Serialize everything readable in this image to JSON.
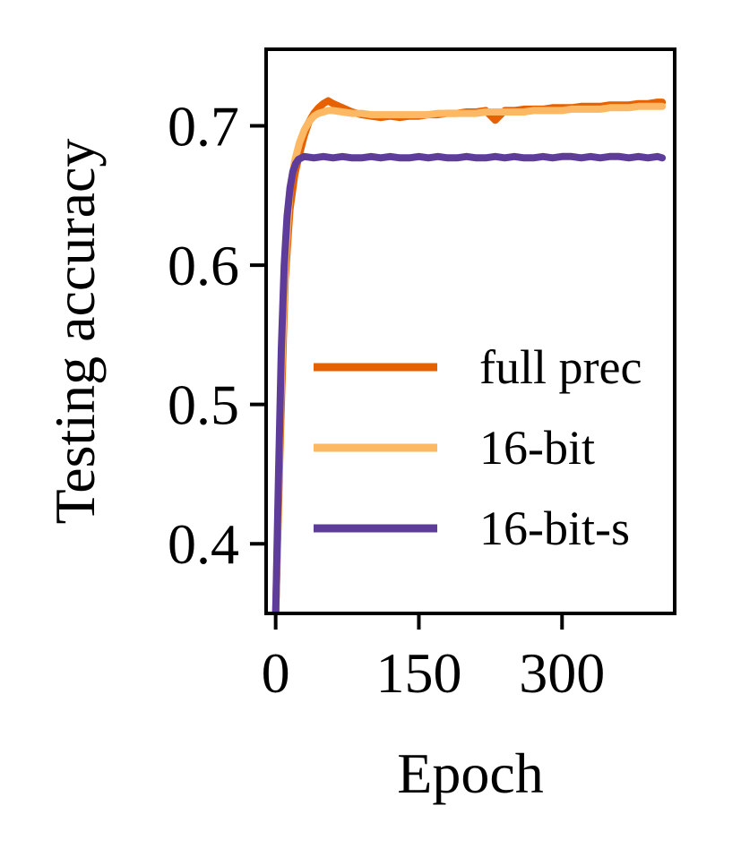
{
  "chart_data": {
    "type": "line",
    "xlabel": "Epoch",
    "ylabel": "Testing accuracy",
    "xlim": [
      -10,
      418
    ],
    "ylim": [
      0.35,
      0.755
    ],
    "xticks": [
      0,
      150,
      300
    ],
    "xtick_labels": [
      "0",
      "150",
      "300"
    ],
    "yticks": [
      0.4,
      0.5,
      0.6,
      0.7
    ],
    "ytick_labels": [
      "0.4",
      "0.5",
      "0.6",
      "0.7"
    ],
    "grid": false,
    "legend_position": "lower-right",
    "series": [
      {
        "name": "full prec",
        "color": "#e66101",
        "x": [
          0,
          5,
          10,
          15,
          20,
          25,
          30,
          35,
          40,
          45,
          50,
          55,
          60,
          70,
          80,
          90,
          100,
          110,
          120,
          130,
          140,
          150,
          160,
          170,
          180,
          190,
          200,
          210,
          220,
          230,
          240,
          250,
          260,
          270,
          280,
          290,
          300,
          310,
          320,
          330,
          340,
          350,
          360,
          370,
          380,
          390,
          400,
          405
        ],
        "y": [
          0.35,
          0.48,
          0.59,
          0.64,
          0.665,
          0.68,
          0.693,
          0.703,
          0.709,
          0.713,
          0.716,
          0.718,
          0.716,
          0.713,
          0.71,
          0.708,
          0.707,
          0.706,
          0.707,
          0.706,
          0.707,
          0.707,
          0.708,
          0.708,
          0.709,
          0.709,
          0.71,
          0.71,
          0.711,
          0.704,
          0.711,
          0.711,
          0.712,
          0.712,
          0.712,
          0.713,
          0.713,
          0.713,
          0.714,
          0.714,
          0.714,
          0.715,
          0.715,
          0.715,
          0.716,
          0.716,
          0.717,
          0.717
        ]
      },
      {
        "name": "16-bit",
        "color": "#fdb863",
        "x": [
          0,
          5,
          10,
          15,
          20,
          25,
          30,
          35,
          40,
          45,
          50,
          55,
          60,
          70,
          80,
          90,
          100,
          110,
          120,
          130,
          140,
          150,
          160,
          170,
          180,
          190,
          200,
          210,
          220,
          230,
          240,
          250,
          260,
          270,
          280,
          290,
          300,
          310,
          320,
          330,
          340,
          350,
          360,
          370,
          380,
          390,
          400,
          405
        ],
        "y": [
          0.35,
          0.5,
          0.6,
          0.655,
          0.675,
          0.688,
          0.697,
          0.703,
          0.707,
          0.709,
          0.71,
          0.711,
          0.711,
          0.71,
          0.709,
          0.709,
          0.708,
          0.708,
          0.708,
          0.708,
          0.708,
          0.708,
          0.708,
          0.709,
          0.709,
          0.709,
          0.709,
          0.709,
          0.71,
          0.71,
          0.71,
          0.71,
          0.71,
          0.711,
          0.711,
          0.711,
          0.711,
          0.712,
          0.712,
          0.712,
          0.712,
          0.713,
          0.713,
          0.713,
          0.714,
          0.714,
          0.714,
          0.714
        ]
      },
      {
        "name": "16-bit-s",
        "color": "#5e3c99",
        "x": [
          0,
          3,
          6,
          9,
          12,
          15,
          18,
          21,
          24,
          27,
          30,
          40,
          50,
          60,
          70,
          80,
          90,
          100,
          110,
          120,
          130,
          140,
          150,
          160,
          170,
          180,
          190,
          200,
          210,
          220,
          230,
          240,
          250,
          260,
          270,
          280,
          290,
          300,
          310,
          320,
          330,
          340,
          350,
          360,
          370,
          380,
          390,
          400,
          405
        ],
        "y": [
          0.35,
          0.45,
          0.54,
          0.6,
          0.635,
          0.655,
          0.667,
          0.673,
          0.676,
          0.677,
          0.678,
          0.677,
          0.678,
          0.677,
          0.678,
          0.677,
          0.677,
          0.678,
          0.677,
          0.678,
          0.677,
          0.677,
          0.678,
          0.677,
          0.678,
          0.677,
          0.677,
          0.678,
          0.677,
          0.677,
          0.678,
          0.677,
          0.678,
          0.677,
          0.677,
          0.678,
          0.677,
          0.678,
          0.678,
          0.677,
          0.678,
          0.677,
          0.678,
          0.678,
          0.677,
          0.678,
          0.677,
          0.678,
          0.677
        ]
      }
    ]
  }
}
